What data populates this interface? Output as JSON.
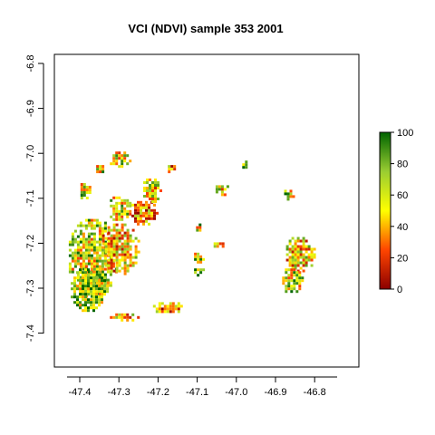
{
  "chart_data": {
    "type": "heatmap",
    "title": "VCI (NDVI) sample 353 2001",
    "xlabel": "",
    "ylabel": "",
    "x_ticks": [
      "-47.4",
      "-47.3",
      "-47.2",
      "-47.1",
      "-47.0",
      "-46.9",
      "-46.8"
    ],
    "y_ticks": [
      "-6.8",
      "-6.9",
      "-7.0",
      "-7.1",
      "-7.2",
      "-7.3",
      "-7.4"
    ],
    "x_tick_values": [
      -47.4,
      -47.3,
      -47.2,
      -47.1,
      -47.0,
      -46.9,
      -46.8
    ],
    "y_tick_values": [
      -6.8,
      -6.9,
      -7.0,
      -7.1,
      -7.2,
      -7.3,
      -7.4
    ],
    "xlim": [
      -47.43,
      -46.73
    ],
    "ylim": [
      -7.49,
      -6.77
    ],
    "grid": false,
    "legend": {
      "placement": "right",
      "range": [
        0,
        100
      ],
      "ticks": [
        "0",
        "20",
        "40",
        "60",
        "80",
        "100"
      ],
      "tick_values": [
        0,
        20,
        40,
        60,
        80,
        100
      ],
      "colors": [
        "#8b0000",
        "#ff4500",
        "#ffff00",
        "#9acd32",
        "#006400"
      ]
    },
    "clusters": [
      {
        "lon": -47.37,
        "lat": -7.23,
        "rx": 0.065,
        "ry": 0.09,
        "mean": 62
      },
      {
        "lon": -47.3,
        "lat": -7.21,
        "rx": 0.05,
        "ry": 0.06,
        "mean": 45
      },
      {
        "lon": -47.38,
        "lat": -7.3,
        "rx": 0.05,
        "ry": 0.05,
        "mean": 70
      },
      {
        "lon": -47.24,
        "lat": -7.13,
        "rx": 0.035,
        "ry": 0.03,
        "mean": 40
      },
      {
        "lon": -47.3,
        "lat": -7.12,
        "rx": 0.03,
        "ry": 0.03,
        "mean": 55
      },
      {
        "lon": -47.39,
        "lat": -7.08,
        "rx": 0.015,
        "ry": 0.02,
        "mean": 60
      },
      {
        "lon": -47.22,
        "lat": -7.08,
        "rx": 0.025,
        "ry": 0.03,
        "mean": 50
      },
      {
        "lon": -46.84,
        "lat": -7.22,
        "rx": 0.04,
        "ry": 0.04,
        "mean": 48
      },
      {
        "lon": -46.86,
        "lat": -7.28,
        "rx": 0.03,
        "ry": 0.03,
        "mean": 60
      },
      {
        "lon": -47.18,
        "lat": -7.34,
        "rx": 0.04,
        "ry": 0.015,
        "mean": 35
      },
      {
        "lon": -47.29,
        "lat": -7.36,
        "rx": 0.04,
        "ry": 0.01,
        "mean": 45
      },
      {
        "lon": -47.3,
        "lat": -7.01,
        "rx": 0.03,
        "ry": 0.02,
        "mean": 55
      },
      {
        "lon": -47.1,
        "lat": -7.23,
        "rx": 0.015,
        "ry": 0.015,
        "mean": 60
      },
      {
        "lon": -47.1,
        "lat": -7.26,
        "rx": 0.015,
        "ry": 0.01,
        "mean": 70
      },
      {
        "lon": -47.04,
        "lat": -7.08,
        "rx": 0.02,
        "ry": 0.015,
        "mean": 55
      },
      {
        "lon": -46.87,
        "lat": -7.09,
        "rx": 0.015,
        "ry": 0.015,
        "mean": 65
      },
      {
        "lon": -46.98,
        "lat": -7.02,
        "rx": 0.012,
        "ry": 0.01,
        "mean": 70
      },
      {
        "lon": -47.17,
        "lat": -7.03,
        "rx": 0.012,
        "ry": 0.01,
        "mean": 40
      },
      {
        "lon": -47.35,
        "lat": -7.03,
        "rx": 0.015,
        "ry": 0.01,
        "mean": 60
      },
      {
        "lon": -47.05,
        "lat": -7.2,
        "rx": 0.015,
        "ry": 0.008,
        "mean": 55
      },
      {
        "lon": -47.1,
        "lat": -7.16,
        "rx": 0.01,
        "ry": 0.01,
        "mean": 62
      }
    ]
  }
}
